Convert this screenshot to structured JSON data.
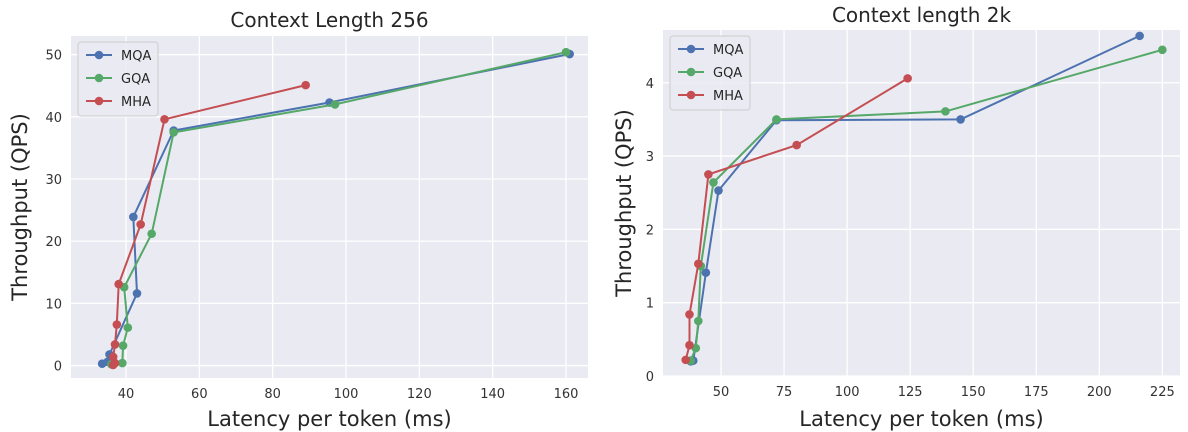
{
  "chart_data": [
    {
      "type": "line",
      "title": "Context Length 256",
      "xlabel": "Latency per token (ms)",
      "ylabel": "Throughput (QPS)",
      "xlim": [
        25,
        166
      ],
      "ylim": [
        -2,
        53
      ],
      "xticks": [
        40,
        60,
        80,
        100,
        120,
        140,
        160
      ],
      "yticks": [
        0,
        10,
        20,
        30,
        40,
        50
      ],
      "grid": true,
      "legend_position": "top-left",
      "series": [
        {
          "name": "MQA",
          "color": "#4c72b0",
          "points": [
            [
              33.5,
              0.3
            ],
            [
              35,
              0.6
            ],
            [
              35.5,
              1.8
            ],
            [
              43,
              11.6
            ],
            [
              42,
              23.9
            ],
            [
              53,
              37.8
            ],
            [
              95.5,
              42.3
            ],
            [
              161,
              50.1
            ]
          ]
        },
        {
          "name": "GQA",
          "color": "#55a868",
          "points": [
            [
              36,
              0.2
            ],
            [
              39,
              0.4
            ],
            [
              39.2,
              3.2
            ],
            [
              40.5,
              6.1
            ],
            [
              39.5,
              12.6
            ],
            [
              47,
              21.2
            ],
            [
              53,
              37.5
            ],
            [
              97,
              42
            ],
            [
              160,
              50.4
            ]
          ]
        },
        {
          "name": "MHA",
          "color": "#c44e52",
          "points": [
            [
              36.5,
              0.1
            ],
            [
              37,
              0.4
            ],
            [
              36.5,
              1.4
            ],
            [
              37,
              3.4
            ],
            [
              37.5,
              6.6
            ],
            [
              38,
              13.1
            ],
            [
              44,
              22.7
            ],
            [
              50.5,
              39.6
            ],
            [
              89,
              45.1
            ]
          ]
        }
      ]
    },
    {
      "type": "line",
      "title": "Context length 2k",
      "xlabel": "Latency per token (ms)",
      "ylabel": "Throughput (QPS)",
      "xlim": [
        27,
        232
      ],
      "ylim": [
        0,
        4.72
      ],
      "xticks": [
        50,
        75,
        100,
        125,
        150,
        175,
        200,
        225
      ],
      "yticks": [
        0,
        1,
        2,
        3,
        4
      ],
      "grid": true,
      "legend_position": "top-left",
      "series": [
        {
          "name": "MQA",
          "color": "#4c72b0",
          "points": [
            [
              38,
              0.2
            ],
            [
              39,
              0.21
            ],
            [
              44,
              1.41
            ],
            [
              49,
              2.53
            ],
            [
              72,
              3.49
            ],
            [
              145,
              3.5
            ],
            [
              216,
              4.64
            ]
          ]
        },
        {
          "name": "GQA",
          "color": "#55a868",
          "points": [
            [
              38,
              0.21
            ],
            [
              40,
              0.38
            ],
            [
              41,
              0.75
            ],
            [
              42,
              1.5
            ],
            [
              47,
              2.64
            ],
            [
              72,
              3.5
            ],
            [
              139,
              3.61
            ],
            [
              225,
              4.45
            ]
          ]
        },
        {
          "name": "MHA",
          "color": "#c44e52",
          "points": [
            [
              36,
              0.22
            ],
            [
              37.5,
              0.42
            ],
            [
              37.5,
              0.84
            ],
            [
              41,
              1.53
            ],
            [
              45,
              2.75
            ],
            [
              80,
              3.15
            ],
            [
              124,
              4.06
            ]
          ]
        }
      ]
    }
  ]
}
